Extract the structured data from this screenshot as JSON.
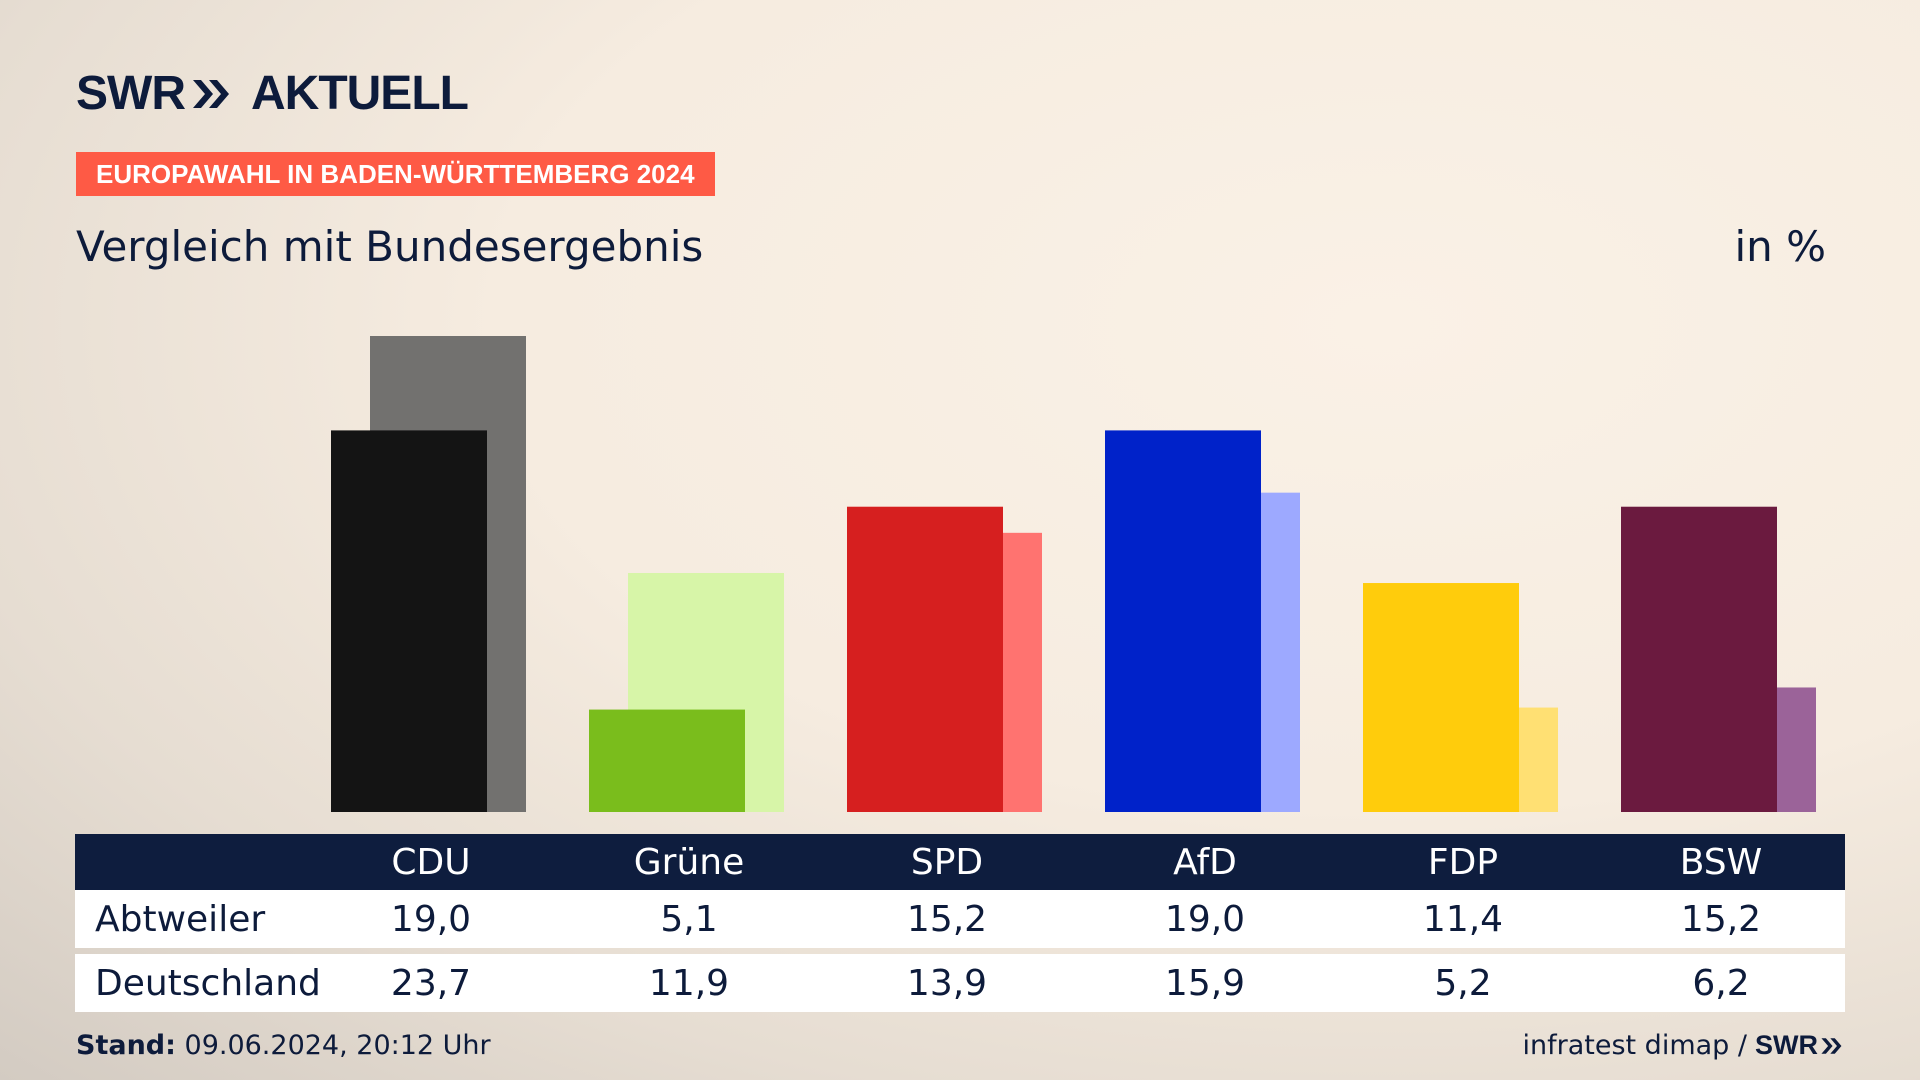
{
  "brand": {
    "name": "SWR",
    "product": "AKTUELL"
  },
  "kicker": "EUROPAWAHL IN BADEN-WÜRTTEMBERG 2024",
  "subtitle": "Vergleich mit Bundesergebnis",
  "unit": "in %",
  "table": {
    "row_labels": [
      "Abtweiler",
      "Deutschland"
    ]
  },
  "footer": {
    "stand_label": "Stand:",
    "stand_value": "09.06.2024, 20:12 Uhr",
    "source": "infratest dimap /",
    "source_brand": "SWR"
  },
  "chart_data": {
    "type": "bar",
    "categories": [
      "CDU",
      "Grüne",
      "SPD",
      "AfD",
      "FDP",
      "BSW"
    ],
    "series": [
      {
        "name": "Abtweiler",
        "values": [
          19.0,
          5.1,
          15.2,
          19.0,
          11.4,
          15.2
        ],
        "labels": [
          "19,0",
          "5,1",
          "15,2",
          "19,0",
          "11,4",
          "15,2"
        ],
        "colors": [
          "#141414",
          "#7abd1c",
          "#d61f1f",
          "#0022c9",
          "#ffcc0c",
          "#6b1a3f"
        ]
      },
      {
        "name": "Deutschland",
        "values": [
          23.7,
          11.9,
          13.9,
          15.9,
          5.2,
          6.2
        ],
        "labels": [
          "23,7",
          "11,9",
          "13,9",
          "15,9",
          "5,2",
          "6,2"
        ],
        "colors": [
          "#72716f",
          "#d7f5a8",
          "#ff7370",
          "#9da9ff",
          "#ffe073",
          "#9b6399"
        ]
      }
    ],
    "ylim": [
      0,
      23.7
    ],
    "grid": false,
    "legend": "table-below"
  }
}
